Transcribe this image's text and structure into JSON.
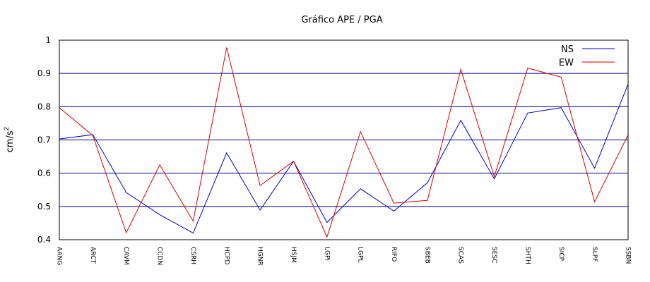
{
  "chart_data": {
    "type": "line",
    "title": "Gráfico  APE / PGA",
    "xlabel": "",
    "ylabel": "cm/s",
    "ylabel_superscript": "2",
    "ylim": [
      0.4,
      1.0
    ],
    "yticks": [
      0.4,
      0.5,
      0.6,
      0.7,
      0.8,
      0.9,
      1
    ],
    "ytick_labels": [
      "0.4",
      "0.5",
      "0.6",
      "0.7",
      "0.8",
      "0.9",
      "1"
    ],
    "grid": "horizontal",
    "legend_position": "top-right",
    "categories": [
      "AANG",
      "ARCT",
      "CAVM",
      "CCDN",
      "CSRH",
      "HCPD",
      "HGNR",
      "HSJM",
      "LGPI",
      "LGPL",
      "RIFO",
      "SBEB",
      "SCAS",
      "SESC",
      "SHTH",
      "SICP",
      "SLPF",
      "SSBN"
    ],
    "series": [
      {
        "name": "NS",
        "color": "#0000cc",
        "values": [
          0.703,
          0.716,
          0.542,
          0.475,
          0.42,
          0.661,
          0.489,
          0.636,
          0.452,
          0.553,
          0.486,
          0.571,
          0.759,
          0.583,
          0.781,
          0.797,
          0.615,
          0.868
        ]
      },
      {
        "name": "EW",
        "color": "#dd0000",
        "values": [
          0.797,
          0.713,
          0.421,
          0.625,
          0.456,
          0.978,
          0.563,
          0.636,
          0.408,
          0.725,
          0.51,
          0.518,
          0.912,
          0.59,
          0.916,
          0.889,
          0.514,
          0.715
        ]
      }
    ]
  }
}
